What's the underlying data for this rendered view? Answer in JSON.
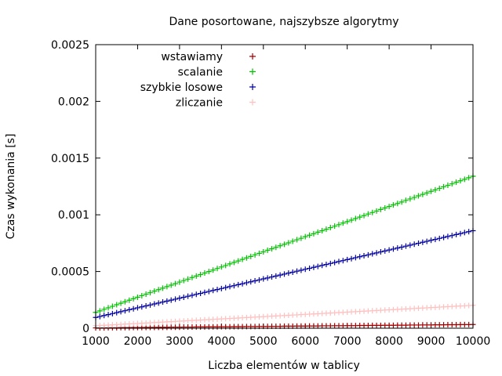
{
  "chart_data": {
    "type": "scatter",
    "title": "Dane posortowane, najszybsze algorytmy",
    "xlabel": "Liczba elementów w tablicy",
    "ylabel": "Czas wykonania [s]",
    "xlim": [
      1000,
      10000
    ],
    "ylim": [
      0,
      0.0025
    ],
    "xticks": [
      "1000",
      "2000",
      "3000",
      "4000",
      "5000",
      "6000",
      "7000",
      "8000",
      "9000",
      "10000"
    ],
    "yticks": [
      "0",
      "0.0005",
      "0.001",
      "0.0015",
      "0.002",
      "0.0025"
    ],
    "grid": false,
    "legend_position": "top-left",
    "marker": "+",
    "series": [
      {
        "name": "wstawiamy",
        "color": "#a00000",
        "x": [
          1000,
          1100,
          1200,
          1300,
          1400,
          1500,
          1600,
          1700,
          1800,
          1900,
          2000,
          2100,
          2200,
          2300,
          2400,
          2500,
          2600,
          2700,
          2800,
          2900,
          3000,
          3100,
          3200,
          3300,
          3400,
          3500,
          3600,
          3700,
          3800,
          3900,
          4000,
          4100,
          4200,
          4300,
          4400,
          4500,
          4600,
          4700,
          4800,
          4900,
          5000,
          5100,
          5200,
          5300,
          5400,
          5500,
          5600,
          5700,
          5800,
          5900,
          6000,
          6100,
          6200,
          6300,
          6400,
          6500,
          6600,
          6700,
          6800,
          6900,
          7000,
          7100,
          7200,
          7300,
          7400,
          7500,
          7600,
          7700,
          7800,
          7900,
          8000,
          8100,
          8200,
          8300,
          8400,
          8500,
          8600,
          8700,
          8800,
          8900,
          9000,
          9100,
          9200,
          9300,
          9400,
          9500,
          9600,
          9700,
          9800,
          9900,
          10000
        ],
        "y": [
          3e-06,
          3e-06,
          3e-06,
          4e-06,
          4e-06,
          4e-06,
          5e-06,
          5e-06,
          5e-06,
          6e-06,
          6e-06,
          6e-06,
          7e-06,
          7e-06,
          7e-06,
          8e-06,
          8e-06,
          8e-06,
          9e-06,
          9e-06,
          9e-06,
          1e-05,
          1e-05,
          1e-05,
          1.1e-05,
          1.1e-05,
          1.1e-05,
          1.2e-05,
          1.2e-05,
          1.2e-05,
          1.3e-05,
          1.3e-05,
          1.3e-05,
          1.4e-05,
          1.4e-05,
          1.4e-05,
          1.5e-05,
          1.5e-05,
          1.5e-05,
          1.6e-05,
          1.6e-05,
          1.6e-05,
          1.7e-05,
          1.7e-05,
          1.7e-05,
          1.8e-05,
          1.8e-05,
          1.8e-05,
          1.9e-05,
          1.9e-05,
          1.9e-05,
          2e-05,
          2e-05,
          2e-05,
          2.1e-05,
          2.1e-05,
          2.1e-05,
          2.2e-05,
          2.2e-05,
          2.2e-05,
          2.3e-05,
          2.3e-05,
          2.3e-05,
          2.4e-05,
          2.4e-05,
          2.4e-05,
          2.5e-05,
          2.5e-05,
          2.5e-05,
          2.6e-05,
          2.6e-05,
          2.6e-05,
          2.7e-05,
          2.7e-05,
          2.7e-05,
          2.8e-05,
          2.8e-05,
          2.8e-05,
          2.9e-05,
          2.9e-05,
          2.9e-05,
          3e-05,
          3e-05,
          3e-05,
          3.1e-05,
          3.1e-05,
          3.1e-05,
          3.2e-05,
          3.2e-05,
          3.2e-05,
          3.3e-05
        ]
      },
      {
        "name": "scalanie",
        "color": "#00c000",
        "x": [
          1000,
          1100,
          1200,
          1300,
          1400,
          1500,
          1600,
          1700,
          1800,
          1900,
          2000,
          2100,
          2200,
          2300,
          2400,
          2500,
          2600,
          2700,
          2800,
          2900,
          3000,
          3100,
          3200,
          3300,
          3400,
          3500,
          3600,
          3700,
          3800,
          3900,
          4000,
          4100,
          4200,
          4300,
          4400,
          4500,
          4600,
          4700,
          4800,
          4900,
          5000,
          5100,
          5200,
          5300,
          5400,
          5500,
          5600,
          5700,
          5800,
          5900,
          6000,
          6100,
          6200,
          6300,
          6400,
          6500,
          6600,
          6700,
          6800,
          6900,
          7000,
          7100,
          7200,
          7300,
          7400,
          7500,
          7600,
          7700,
          7800,
          7900,
          8000,
          8100,
          8200,
          8300,
          8400,
          8500,
          8600,
          8700,
          8800,
          8900,
          9000,
          9100,
          9200,
          9300,
          9400,
          9500,
          9600,
          9700,
          9800,
          9900,
          10000
        ],
        "y": [
          0.00014,
          0.000153,
          0.000167,
          0.00018,
          0.000193,
          0.000207,
          0.00022,
          0.000233,
          0.000247,
          0.00026,
          0.000273,
          0.000287,
          0.0003,
          0.000313,
          0.000327,
          0.00034,
          0.000353,
          0.000367,
          0.00038,
          0.000393,
          0.000407,
          0.00042,
          0.000433,
          0.000447,
          0.00046,
          0.000473,
          0.000487,
          0.0005,
          0.000513,
          0.000527,
          0.00054,
          0.000553,
          0.000567,
          0.00058,
          0.000593,
          0.000607,
          0.00062,
          0.000633,
          0.000647,
          0.00066,
          0.000673,
          0.000687,
          0.0007,
          0.000713,
          0.000727,
          0.00074,
          0.000753,
          0.000767,
          0.00078,
          0.000793,
          0.000807,
          0.00082,
          0.000833,
          0.000847,
          0.00086,
          0.000873,
          0.000887,
          0.0009,
          0.000913,
          0.000927,
          0.00094,
          0.000953,
          0.000967,
          0.00098,
          0.000993,
          0.001007,
          0.00102,
          0.001033,
          0.001047,
          0.00106,
          0.001073,
          0.001087,
          0.0011,
          0.001113,
          0.001127,
          0.00114,
          0.001153,
          0.001167,
          0.00118,
          0.001193,
          0.001207,
          0.00122,
          0.001233,
          0.001247,
          0.00126,
          0.001273,
          0.001287,
          0.0013,
          0.001313,
          0.001327,
          0.00134
        ]
      },
      {
        "name": "szybkie losowe",
        "color": "#0000a0",
        "x": [
          1000,
          1100,
          1200,
          1300,
          1400,
          1500,
          1600,
          1700,
          1800,
          1900,
          2000,
          2100,
          2200,
          2300,
          2400,
          2500,
          2600,
          2700,
          2800,
          2900,
          3000,
          3100,
          3200,
          3300,
          3400,
          3500,
          3600,
          3700,
          3800,
          3900,
          4000,
          4100,
          4200,
          4300,
          4400,
          4500,
          4600,
          4700,
          4800,
          4900,
          5000,
          5100,
          5200,
          5300,
          5400,
          5500,
          5600,
          5700,
          5800,
          5900,
          6000,
          6100,
          6200,
          6300,
          6400,
          6500,
          6600,
          6700,
          6800,
          6900,
          7000,
          7100,
          7200,
          7300,
          7400,
          7500,
          7600,
          7700,
          7800,
          7900,
          8000,
          8100,
          8200,
          8300,
          8400,
          8500,
          8600,
          8700,
          8800,
          8900,
          9000,
          9100,
          9200,
          9300,
          9400,
          9500,
          9600,
          9700,
          9800,
          9900,
          10000
        ],
        "y": [
          9.5e-05,
          0.000103,
          0.000112,
          0.00012,
          0.000129,
          0.000137,
          0.000146,
          0.000154,
          0.000163,
          0.000171,
          0.00018,
          0.000188,
          0.000197,
          0.000205,
          0.000214,
          0.000222,
          0.000231,
          0.000239,
          0.000248,
          0.000256,
          0.000265,
          0.000273,
          0.000282,
          0.00029,
          0.000299,
          0.000307,
          0.000316,
          0.000324,
          0.000333,
          0.000341,
          0.00035,
          0.000358,
          0.000367,
          0.000375,
          0.000384,
          0.000392,
          0.000401,
          0.000409,
          0.000418,
          0.000426,
          0.000435,
          0.000443,
          0.000452,
          0.00046,
          0.000469,
          0.000477,
          0.000486,
          0.000494,
          0.000503,
          0.000511,
          0.00052,
          0.000528,
          0.000537,
          0.000545,
          0.000554,
          0.000562,
          0.000571,
          0.000579,
          0.000588,
          0.000596,
          0.000605,
          0.000613,
          0.000622,
          0.00063,
          0.000639,
          0.000647,
          0.000656,
          0.000664,
          0.000673,
          0.000681,
          0.00069,
          0.000698,
          0.000707,
          0.000715,
          0.000724,
          0.000732,
          0.000741,
          0.000749,
          0.000758,
          0.000766,
          0.000775,
          0.000783,
          0.000792,
          0.0008,
          0.000809,
          0.000817,
          0.000826,
          0.000834,
          0.000843,
          0.000851,
          0.00086
        ]
      },
      {
        "name": "zliczanie",
        "color": "#ffc0c0",
        "x": [
          1000,
          1100,
          1200,
          1300,
          1400,
          1500,
          1600,
          1700,
          1800,
          1900,
          2000,
          2100,
          2200,
          2300,
          2400,
          2500,
          2600,
          2700,
          2800,
          2900,
          3000,
          3100,
          3200,
          3300,
          3400,
          3500,
          3600,
          3700,
          3800,
          3900,
          4000,
          4100,
          4200,
          4300,
          4400,
          4500,
          4600,
          4700,
          4800,
          4900,
          5000,
          5100,
          5200,
          5300,
          5400,
          5500,
          5600,
          5700,
          5800,
          5900,
          6000,
          6100,
          6200,
          6300,
          6400,
          6500,
          6600,
          6700,
          6800,
          6900,
          7000,
          7100,
          7200,
          7300,
          7400,
          7500,
          7600,
          7700,
          7800,
          7900,
          8000,
          8100,
          8200,
          8300,
          8400,
          8500,
          8600,
          8700,
          8800,
          8900,
          9000,
          9100,
          9200,
          9300,
          9400,
          9500,
          9600,
          9700,
          9800,
          9900,
          10000
        ],
        "y": [
          2.2e-05,
          2.4e-05,
          2.6e-05,
          2.8e-05,
          3e-05,
          3.2e-05,
          3.4e-05,
          3.6e-05,
          3.8e-05,
          4e-05,
          4.2e-05,
          4.4e-05,
          4.6e-05,
          4.8e-05,
          5e-05,
          5.2e-05,
          5.4e-05,
          5.6e-05,
          5.8e-05,
          6e-05,
          6.2e-05,
          6.4e-05,
          6.6e-05,
          6.8e-05,
          7e-05,
          7.2e-05,
          7.4e-05,
          7.6e-05,
          7.8e-05,
          8e-05,
          8.2e-05,
          8.4e-05,
          8.6e-05,
          8.8e-05,
          9e-05,
          9.2e-05,
          9.4e-05,
          9.6e-05,
          9.8e-05,
          0.0001,
          0.000102,
          0.000104,
          0.000106,
          0.000108,
          0.00011,
          0.000112,
          0.000114,
          0.000116,
          0.000118,
          0.00012,
          0.000122,
          0.000124,
          0.000126,
          0.000128,
          0.00013,
          0.000132,
          0.000134,
          0.000136,
          0.000138,
          0.00014,
          0.000142,
          0.000144,
          0.000146,
          0.000148,
          0.00015,
          0.000152,
          0.000154,
          0.000156,
          0.000158,
          0.00016,
          0.000162,
          0.000164,
          0.000166,
          0.000168,
          0.00017,
          0.000172,
          0.000174,
          0.000176,
          0.000178,
          0.00018,
          0.000182,
          0.000184,
          0.000186,
          0.000188,
          0.00019,
          0.000192,
          0.000194,
          0.000196,
          0.000198,
          0.0002,
          0.000202
        ]
      }
    ]
  }
}
